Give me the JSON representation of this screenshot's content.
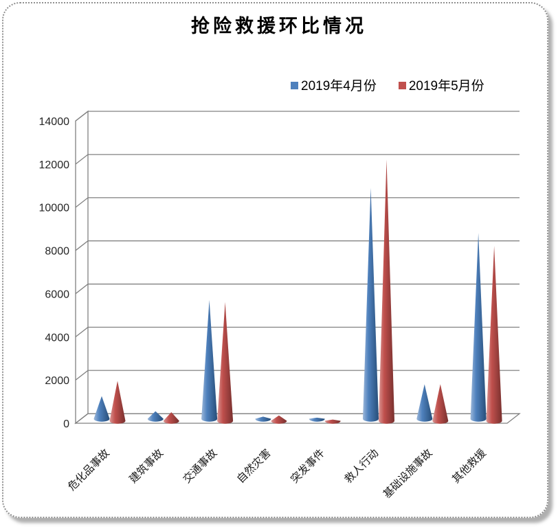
{
  "chart_data": {
    "type": "bar",
    "subtype": "3d-cone",
    "title": "抢险救援环比情况",
    "categories": [
      "危化品事故",
      "建筑事故",
      "交通事故",
      "自然灾害",
      "突发事件",
      "救人行动",
      "基础设施事故",
      "其他救援"
    ],
    "series": [
      {
        "name": "2019年4月份",
        "color": "#4F81BD",
        "values": [
          1050,
          350,
          5500,
          100,
          50,
          10700,
          1600,
          8600
        ]
      },
      {
        "name": "2019年5月份",
        "color": "#C0504D",
        "values": [
          1850,
          400,
          5500,
          250,
          60,
          12100,
          1700,
          8100
        ]
      }
    ],
    "xlabel": "",
    "ylabel": "",
    "ylim": [
      0,
      14000
    ],
    "ytick_step": 2000,
    "grid": true,
    "legend_position": "top-center",
    "wall_color": "#ffffff",
    "gridline_color": "#808080",
    "tick_label_color": "#262626"
  }
}
